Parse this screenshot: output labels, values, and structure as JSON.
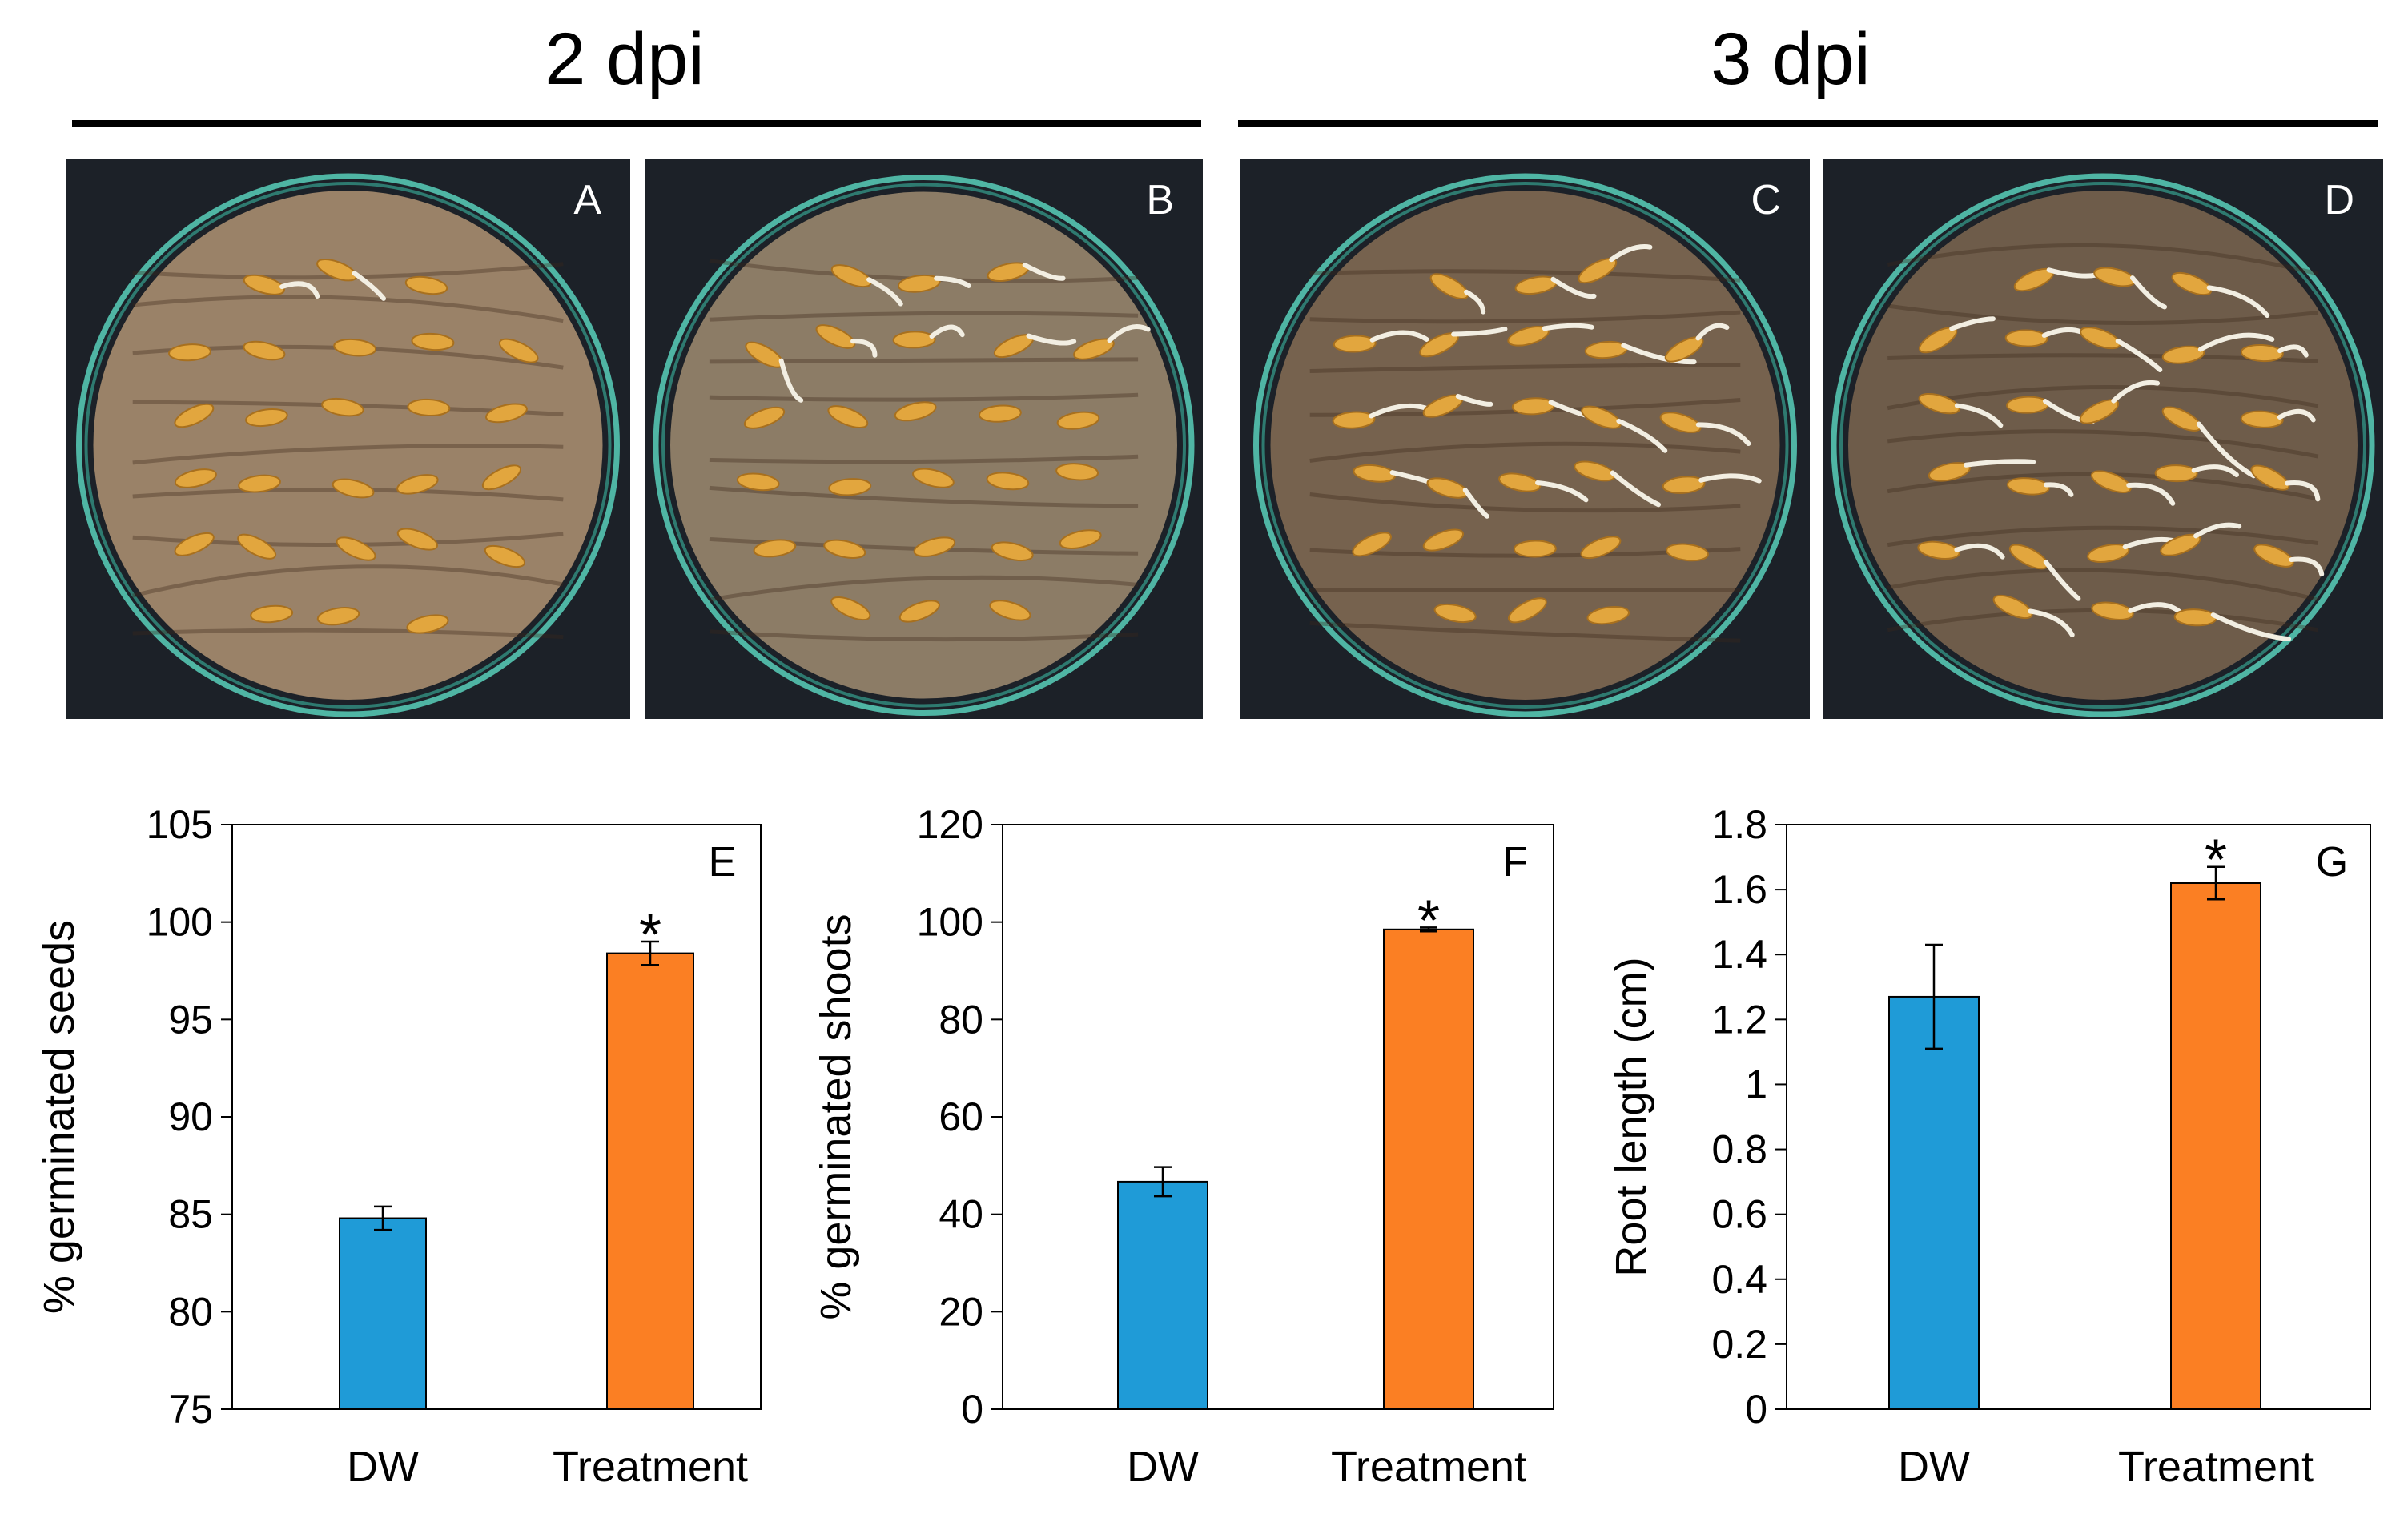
{
  "headers": {
    "left": "2 dpi",
    "right": "3 dpi"
  },
  "photos": [
    {
      "label": "A",
      "paper": "#9a8268",
      "sprouts": 2
    },
    {
      "label": "B",
      "paper": "#8c7c66",
      "sprouts": 8
    },
    {
      "label": "C",
      "paper": "#76624e",
      "sprouts": 18
    },
    {
      "label": "D",
      "paper": "#6e5c4a",
      "sprouts": 30
    }
  ],
  "colors": {
    "dw": "#1f9bd7",
    "treatment": "#fb7f23"
  },
  "chart_data": [
    {
      "type": "bar",
      "panel": "E",
      "title": "",
      "categories": [
        "DW",
        "Treatment"
      ],
      "values": [
        84.8,
        98.4
      ],
      "errors": [
        0.6,
        0.6
      ],
      "significance": [
        "",
        "*"
      ],
      "ylabel": "% germinated seeds",
      "xlabel": "",
      "ylim": [
        75,
        105
      ],
      "yticks": [
        75,
        80,
        85,
        90,
        95,
        100,
        105
      ],
      "ytick_labels": [
        "75",
        "80",
        "85",
        "90",
        "95",
        "100",
        "105"
      ]
    },
    {
      "type": "bar",
      "panel": "F",
      "title": "",
      "categories": [
        "DW",
        "Treatment"
      ],
      "values": [
        46.7,
        98.5
      ],
      "errors": [
        3.0,
        0.4
      ],
      "significance": [
        "",
        "*"
      ],
      "ylabel": "% germinated shoots",
      "xlabel": "",
      "ylim": [
        0,
        120
      ],
      "yticks": [
        0,
        20,
        40,
        60,
        80,
        100,
        120
      ],
      "ytick_labels": [
        "0",
        "20",
        "40",
        "60",
        "80",
        "100",
        "120"
      ]
    },
    {
      "type": "bar",
      "panel": "G",
      "title": "",
      "categories": [
        "DW",
        "Treatment"
      ],
      "values": [
        1.27,
        1.62
      ],
      "errors": [
        0.16,
        0.05
      ],
      "significance": [
        "",
        "*"
      ],
      "ylabel": "Root length (cm)",
      "xlabel": "",
      "ylim": [
        0,
        1.8
      ],
      "yticks": [
        0,
        0.2,
        0.4,
        0.6,
        0.8,
        1,
        1.2,
        1.4,
        1.6,
        1.8
      ],
      "ytick_labels": [
        "0",
        "0.2",
        "0.4",
        "0.6",
        "0.8",
        "1",
        "1.2",
        "1.4",
        "1.6",
        "1.8"
      ]
    }
  ]
}
